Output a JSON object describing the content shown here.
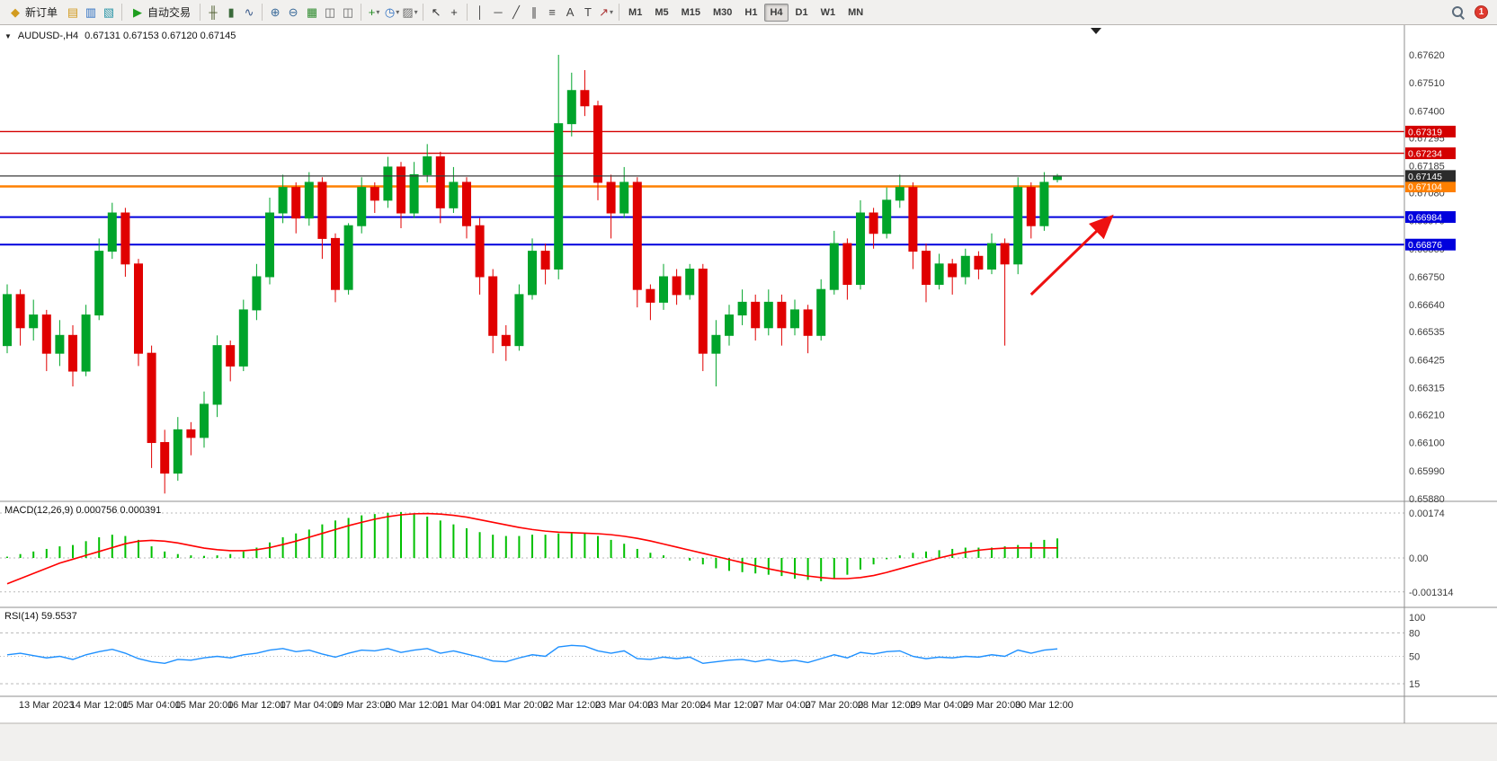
{
  "window": {
    "notifications_count": "1"
  },
  "toolbar": {
    "new_order_label": "新订单",
    "autotrade_label": "自动交易",
    "left_icons": [
      {
        "name": "chart-list-icon",
        "glyph": "▤",
        "color": "#d29b1f"
      },
      {
        "name": "market-watch-icon",
        "glyph": "▥",
        "color": "#2d6fc1"
      },
      {
        "name": "navigator-icon",
        "glyph": "▧",
        "color": "#2d96a8"
      }
    ],
    "chart_type_icons": [
      {
        "name": "bar-chart-icon",
        "glyph": "╫",
        "color": "#4a5a2a"
      },
      {
        "name": "candlestick-chart-icon",
        "glyph": "▮",
        "color": "#3a6a3a"
      },
      {
        "name": "line-chart-icon",
        "glyph": "∿",
        "color": "#3a5a8a"
      }
    ],
    "zoom_icons": [
      {
        "name": "zoom-in-icon",
        "glyph": "⊕",
        "color": "#3a6a9a"
      },
      {
        "name": "zoom-out-icon",
        "glyph": "⊖",
        "color": "#3a6a9a"
      }
    ],
    "window_icons": [
      {
        "name": "tile-windows-icon",
        "glyph": "▦",
        "color": "#2e8b2e"
      },
      {
        "name": "arrange-cascade-icon",
        "glyph": "◫",
        "color": "#666666"
      },
      {
        "name": "arrange-tile-icon",
        "glyph": "◫",
        "color": "#666666"
      }
    ],
    "dropdown_icons": [
      {
        "name": "indicators-icon",
        "glyph": "+",
        "color": "#1f8b1f",
        "caret": true
      },
      {
        "name": "period-icon",
        "glyph": "◷",
        "color": "#2d6fc1",
        "caret": true
      },
      {
        "name": "template-icon",
        "glyph": "▨",
        "color": "#6a6a6a",
        "caret": true
      }
    ],
    "cursor_icons": [
      {
        "name": "cursor-icon",
        "glyph": "↖",
        "color": "#333333"
      },
      {
        "name": "crosshair-icon",
        "glyph": "+",
        "color": "#333333"
      }
    ],
    "draw_icons": [
      {
        "name": "vertical-line-icon",
        "glyph": "│",
        "color": "#444444"
      },
      {
        "name": "horizontal-line-icon",
        "glyph": "─",
        "color": "#444444"
      },
      {
        "name": "trendline-icon",
        "glyph": "╱",
        "color": "#444444"
      },
      {
        "name": "channel-icon",
        "glyph": "∥",
        "color": "#444444"
      },
      {
        "name": "fibonacci-icon",
        "glyph": "≡",
        "color": "#444444"
      },
      {
        "name": "text-icon",
        "glyph": "A",
        "color": "#444444"
      },
      {
        "name": "label-icon",
        "glyph": "T",
        "color": "#444444"
      },
      {
        "name": "arrows-icon",
        "glyph": "↗",
        "color": "#aa3333",
        "caret": true
      }
    ],
    "timeframes": [
      {
        "label": "M1"
      },
      {
        "label": "M5"
      },
      {
        "label": "M15"
      },
      {
        "label": "M30"
      },
      {
        "label": "H1"
      },
      {
        "label": "H4",
        "active": true
      },
      {
        "label": "D1"
      },
      {
        "label": "W1"
      },
      {
        "label": "MN"
      }
    ]
  },
  "chart": {
    "symbol_period": "AUDUSD-,H4",
    "ohlc": "0.67131 0.67153 0.67120 0.67145"
  },
  "price_axis": {
    "labels": [
      "0.67620",
      "0.67510",
      "0.67400",
      "0.67295",
      "0.67185",
      "0.67080",
      "0.66970",
      "0.66860",
      "0.66750",
      "0.66640",
      "0.66535",
      "0.66425",
      "0.66315",
      "0.66210",
      "0.66100",
      "0.65990",
      "0.65880"
    ]
  },
  "levels": [
    {
      "name": "resistance-1",
      "label": "0.67319",
      "value": 0.67319,
      "color": "#d40000",
      "width": 1.4
    },
    {
      "name": "resistance-2",
      "label": "0.67234",
      "value": 0.67234,
      "color": "#d40000",
      "width": 1.4
    },
    {
      "name": "pivot-orange",
      "label": "0.67104",
      "value": 0.67104,
      "color": "#ff8000",
      "width": 2.4
    },
    {
      "name": "support-1",
      "label": "0.66984",
      "value": 0.66984,
      "color": "#0000dd",
      "width": 2
    },
    {
      "name": "support-2",
      "label": "0.66876",
      "value": 0.66876,
      "color": "#0000dd",
      "width": 2
    }
  ],
  "current_price": {
    "label": "0.67145",
    "value": 0.67145,
    "color": "#2b2b2b"
  },
  "macd": {
    "label": "MACD(12,26,9) 0.000756 0.000391",
    "axis": [
      {
        "label": "0.00174",
        "value": 0.00174
      },
      {
        "label": "0.00",
        "value": 0
      },
      {
        "label": "-0.001314",
        "value": -0.001314
      }
    ]
  },
  "rsi": {
    "label": "RSI(14) 59.5537",
    "axis": [
      {
        "label": "100",
        "value": 100
      },
      {
        "label": "80",
        "value": 80
      },
      {
        "label": "50",
        "value": 50
      },
      {
        "label": "15",
        "value": 15
      }
    ]
  },
  "time_axis": [
    "13 Mar 2023",
    "14 Mar 12:00",
    "15 Mar 04:00",
    "15 Mar 20:00",
    "16 Mar 12:00",
    "17 Mar 04:00",
    "19 Mar 23:00",
    "20 Mar 12:00",
    "21 Mar 04:00",
    "21 Mar 20:00",
    "22 Mar 12:00",
    "23 Mar 04:00",
    "23 Mar 20:00",
    "24 Mar 12:00",
    "27 Mar 04:00",
    "27 Mar 20:00",
    "28 Mar 12:00",
    "29 Mar 04:00",
    "29 Mar 20:00",
    "30 Mar 12:00"
  ],
  "chart_data": {
    "type": "candlestick",
    "symbol": "AUDUSD",
    "period": "H4",
    "ylim": [
      0.6588,
      0.6762
    ],
    "candles": [
      [
        0.6648,
        0.6672,
        0.6645,
        0.6668
      ],
      [
        0.6668,
        0.667,
        0.6648,
        0.6655
      ],
      [
        0.6655,
        0.6666,
        0.665,
        0.666
      ],
      [
        0.666,
        0.6662,
        0.6638,
        0.6645
      ],
      [
        0.6645,
        0.6658,
        0.664,
        0.6652
      ],
      [
        0.6652,
        0.6656,
        0.6632,
        0.6638
      ],
      [
        0.6638,
        0.6664,
        0.6636,
        0.666
      ],
      [
        0.666,
        0.669,
        0.6658,
        0.6685
      ],
      [
        0.6685,
        0.6704,
        0.6682,
        0.67
      ],
      [
        0.67,
        0.6702,
        0.6675,
        0.668
      ],
      [
        0.668,
        0.6682,
        0.664,
        0.6645
      ],
      [
        0.6645,
        0.6648,
        0.66,
        0.661
      ],
      [
        0.661,
        0.6615,
        0.659,
        0.6598
      ],
      [
        0.6598,
        0.662,
        0.6595,
        0.6615
      ],
      [
        0.6615,
        0.6618,
        0.6605,
        0.6612
      ],
      [
        0.6612,
        0.663,
        0.6608,
        0.6625
      ],
      [
        0.6625,
        0.6652,
        0.662,
        0.6648
      ],
      [
        0.6648,
        0.665,
        0.6634,
        0.664
      ],
      [
        0.664,
        0.6666,
        0.6638,
        0.6662
      ],
      [
        0.6662,
        0.668,
        0.6658,
        0.6675
      ],
      [
        0.6675,
        0.6706,
        0.6672,
        0.67
      ],
      [
        0.67,
        0.6715,
        0.6696,
        0.671
      ],
      [
        0.671,
        0.6712,
        0.6692,
        0.6698
      ],
      [
        0.6698,
        0.6716,
        0.6695,
        0.6712
      ],
      [
        0.6712,
        0.6714,
        0.6682,
        0.669
      ],
      [
        0.669,
        0.6692,
        0.6665,
        0.667
      ],
      [
        0.667,
        0.6696,
        0.6668,
        0.6695
      ],
      [
        0.6695,
        0.6714,
        0.6692,
        0.671
      ],
      [
        0.671,
        0.6712,
        0.67,
        0.6705
      ],
      [
        0.6705,
        0.6722,
        0.6702,
        0.6718
      ],
      [
        0.6718,
        0.672,
        0.6694,
        0.67
      ],
      [
        0.67,
        0.672,
        0.6698,
        0.6715
      ],
      [
        0.6715,
        0.6727,
        0.6712,
        0.6722
      ],
      [
        0.6722,
        0.6724,
        0.6696,
        0.6702
      ],
      [
        0.6702,
        0.6718,
        0.67,
        0.6712
      ],
      [
        0.6712,
        0.6714,
        0.669,
        0.6695
      ],
      [
        0.6695,
        0.6698,
        0.6668,
        0.6675
      ],
      [
        0.6675,
        0.6678,
        0.6645,
        0.6652
      ],
      [
        0.6652,
        0.6656,
        0.6642,
        0.6648
      ],
      [
        0.6648,
        0.6672,
        0.6646,
        0.6668
      ],
      [
        0.6668,
        0.669,
        0.6666,
        0.6685
      ],
      [
        0.6685,
        0.6688,
        0.6672,
        0.6678
      ],
      [
        0.6678,
        0.6762,
        0.6674,
        0.6735
      ],
      [
        0.6735,
        0.6755,
        0.673,
        0.6748
      ],
      [
        0.6748,
        0.6756,
        0.6738,
        0.6742
      ],
      [
        0.6742,
        0.6744,
        0.6705,
        0.6712
      ],
      [
        0.6712,
        0.6715,
        0.669,
        0.67
      ],
      [
        0.67,
        0.6718,
        0.6698,
        0.6712
      ],
      [
        0.6712,
        0.6714,
        0.6663,
        0.667
      ],
      [
        0.667,
        0.6672,
        0.6658,
        0.6665
      ],
      [
        0.6665,
        0.668,
        0.6662,
        0.6675
      ],
      [
        0.6675,
        0.6678,
        0.6664,
        0.6668
      ],
      [
        0.6668,
        0.668,
        0.6666,
        0.6678
      ],
      [
        0.6678,
        0.668,
        0.6638,
        0.6645
      ],
      [
        0.6645,
        0.6658,
        0.6632,
        0.6652
      ],
      [
        0.6652,
        0.6664,
        0.6648,
        0.666
      ],
      [
        0.666,
        0.667,
        0.6656,
        0.6665
      ],
      [
        0.6665,
        0.6668,
        0.665,
        0.6655
      ],
      [
        0.6655,
        0.667,
        0.6652,
        0.6665
      ],
      [
        0.6665,
        0.6668,
        0.6648,
        0.6655
      ],
      [
        0.6655,
        0.6666,
        0.6652,
        0.6662
      ],
      [
        0.6662,
        0.6664,
        0.6645,
        0.6652
      ],
      [
        0.6652,
        0.6674,
        0.665,
        0.667
      ],
      [
        0.667,
        0.6693,
        0.6668,
        0.6688
      ],
      [
        0.6688,
        0.669,
        0.6666,
        0.6672
      ],
      [
        0.6672,
        0.6705,
        0.667,
        0.67
      ],
      [
        0.67,
        0.6702,
        0.6686,
        0.6692
      ],
      [
        0.6692,
        0.671,
        0.669,
        0.6705
      ],
      [
        0.6705,
        0.6715,
        0.6702,
        0.671
      ],
      [
        0.671,
        0.6712,
        0.6678,
        0.6685
      ],
      [
        0.6685,
        0.6688,
        0.6665,
        0.6672
      ],
      [
        0.6672,
        0.6684,
        0.667,
        0.668
      ],
      [
        0.668,
        0.6682,
        0.6668,
        0.6675
      ],
      [
        0.6675,
        0.6686,
        0.6672,
        0.6683
      ],
      [
        0.6683,
        0.6685,
        0.6674,
        0.6678
      ],
      [
        0.6678,
        0.6692,
        0.6676,
        0.6688
      ],
      [
        0.6688,
        0.669,
        0.6648,
        0.668
      ],
      [
        0.668,
        0.6714,
        0.6676,
        0.671
      ],
      [
        0.671,
        0.6712,
        0.669,
        0.6695
      ],
      [
        0.6695,
        0.6716,
        0.6693,
        0.6712
      ],
      [
        0.67131,
        0.67153,
        0.6712,
        0.67145
      ]
    ],
    "macd": {
      "ylim": [
        -0.001314,
        0.00174
      ],
      "main": [
        5e-05,
        0.00015,
        0.00025,
        0.00035,
        0.00045,
        0.0005,
        0.00065,
        0.0008,
        0.0009,
        0.00085,
        0.0007,
        0.00045,
        0.00025,
        0.00015,
        0.0001,
        8e-05,
        0.0001,
        0.00015,
        0.00025,
        0.0004,
        0.0006,
        0.0008,
        0.00095,
        0.0011,
        0.0013,
        0.00145,
        0.00155,
        0.00165,
        0.0017,
        0.00175,
        0.00178,
        0.00172,
        0.0016,
        0.00145,
        0.0013,
        0.00115,
        0.001,
        0.0009,
        0.00085,
        0.00085,
        0.0009,
        0.0009,
        0.00095,
        0.001,
        0.00095,
        0.00085,
        0.0007,
        0.00055,
        0.00035,
        0.0002,
        0.0001,
        0.0,
        -0.0001,
        -0.00025,
        -0.0004,
        -0.0005,
        -0.00055,
        -0.0006,
        -0.00065,
        -0.0007,
        -0.0008,
        -0.00085,
        -0.0009,
        -0.0008,
        -0.00065,
        -0.00045,
        -0.00025,
        -5e-05,
        0.0001,
        0.0002,
        0.00025,
        0.0003,
        0.00035,
        0.0004,
        0.0004,
        0.0004,
        0.00045,
        0.0005,
        0.0006,
        0.0007,
        0.000756
      ],
      "signal": [
        -0.001,
        -0.0008,
        -0.0006,
        -0.0004,
        -0.0002,
        -5e-05,
        0.0001,
        0.00025,
        0.0004,
        0.00055,
        0.00065,
        0.00068,
        0.00065,
        0.00058,
        0.00048,
        0.00038,
        0.00032,
        0.00028,
        0.00028,
        0.00032,
        0.0004,
        0.00052,
        0.00065,
        0.0008,
        0.00095,
        0.0011,
        0.00125,
        0.00138,
        0.0015,
        0.0016,
        0.00167,
        0.00171,
        0.00172,
        0.0017,
        0.00165,
        0.00158,
        0.00148,
        0.00138,
        0.00128,
        0.00118,
        0.0011,
        0.00104,
        0.001,
        0.00098,
        0.00096,
        0.00094,
        0.0009,
        0.00084,
        0.00076,
        0.00066,
        0.00054,
        0.00042,
        0.0003,
        0.00018,
        6e-05,
        -6e-05,
        -0.00018,
        -0.0003,
        -0.00042,
        -0.00052,
        -0.00062,
        -0.0007,
        -0.00076,
        -0.0008,
        -0.0008,
        -0.00076,
        -0.00068,
        -0.00056,
        -0.00042,
        -0.00028,
        -0.00014,
        0.0,
        0.00012,
        0.00022,
        0.0003,
        0.00035,
        0.00038,
        0.00039,
        0.00039,
        0.00039,
        0.000391
      ]
    },
    "rsi": {
      "ylim": [
        0,
        100
      ],
      "levels": [
        80,
        50,
        15
      ],
      "values": [
        52,
        54,
        51,
        48,
        50,
        46,
        52,
        56,
        59,
        54,
        47,
        43,
        41,
        46,
        45,
        48,
        50,
        48,
        52,
        54,
        58,
        60,
        56,
        58,
        53,
        49,
        54,
        58,
        57,
        60,
        55,
        58,
        60,
        54,
        57,
        53,
        49,
        44,
        43,
        48,
        52,
        50,
        62,
        64,
        63,
        57,
        54,
        57,
        47,
        46,
        49,
        47,
        49,
        41,
        43,
        45,
        46,
        43,
        46,
        43,
        45,
        42,
        47,
        52,
        48,
        55,
        53,
        56,
        57,
        50,
        47,
        49,
        48,
        50,
        49,
        52,
        50,
        58,
        54,
        58,
        59.55
      ]
    },
    "annotation_arrow": {
      "from_bar": 78,
      "from_price": 0.6668,
      "to_bar": 84,
      "to_price": 0.66979,
      "color": "#ee1111"
    },
    "colors": {
      "up": "#00a42a",
      "down": "#e00000",
      "macd_bar": "#00c000",
      "macd_signal": "#ff0000",
      "rsi_line": "#1e90ff"
    }
  }
}
